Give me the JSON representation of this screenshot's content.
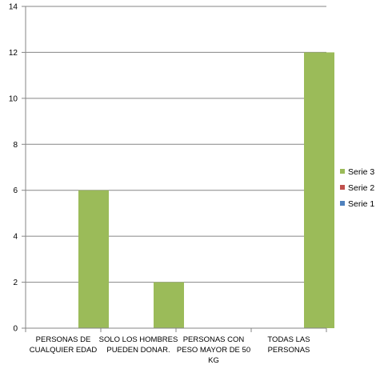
{
  "chart_data": {
    "type": "bar",
    "categories": [
      [
        "PERSONAS DE",
        "CUALQUIER EDAD"
      ],
      [
        "SOLO LOS HOMBRES",
        "PUEDEN DONAR."
      ],
      [
        "PERSONAS CON",
        "PESO MAYOR DE 50",
        "KG"
      ],
      [
        "TODAS LAS",
        "PERSONAS"
      ]
    ],
    "series": [
      {
        "name": "Serie 1",
        "color": "#4F81BD",
        "values": [
          0,
          0,
          0,
          0
        ]
      },
      {
        "name": "Serie 2",
        "color": "#C0504D",
        "values": [
          0,
          0,
          0,
          0
        ]
      },
      {
        "name": "Serie 3",
        "color": "#9BBB59",
        "values": [
          6,
          2,
          0,
          12
        ]
      }
    ],
    "legend_order": [
      "Serie 3",
      "Serie 2",
      "Serie 1"
    ],
    "ylim": [
      0,
      14
    ],
    "yticks": [
      0,
      2,
      4,
      6,
      8,
      10,
      12,
      14
    ],
    "grid": true,
    "legend_position": "right",
    "gridline_color": "#868686"
  }
}
